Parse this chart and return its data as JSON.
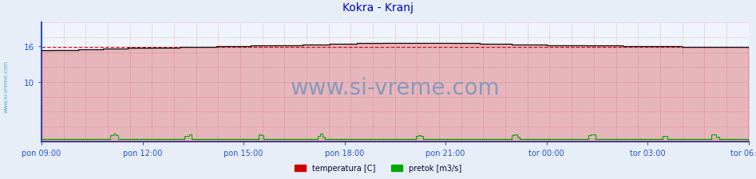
{
  "title": "Kokra - Kranj",
  "title_color": "#0000cc",
  "title_fontsize": 10,
  "fig_bg_color": "#e8eef8",
  "plot_bg_color": "#f0f4fc",
  "xticklabels": [
    "pon 09:00",
    "pon 12:00",
    "pon 15:00",
    "pon 18:00",
    "pon 21:00",
    "tor 00:00",
    "tor 03:00",
    "tor 06:00"
  ],
  "x_tick_count": 8,
  "yticks": [
    10,
    16
  ],
  "ylim": [
    0,
    20
  ],
  "xlim_max": 287,
  "temp_color": "#cc0000",
  "temp_line_color": "#222222",
  "flow_color": "#00aa00",
  "avg_line_color_temp": "#cc0000",
  "avg_line_color_flow": "#00aa00",
  "grid_color": "#dd8888",
  "grid_n_vertical": 32,
  "grid_n_horizontal": 8,
  "watermark": "www.si-vreme.com",
  "watermark_color": "#8899bb",
  "watermark_fontsize": 20,
  "left_label": "www.si-vreme.com",
  "left_label_color": "#44aacc",
  "legend_items": [
    "temperatura [C]",
    "pretok [m3/s]"
  ],
  "legend_colors": [
    "#cc0000",
    "#00aa00"
  ],
  "n_points": 288,
  "axis_color": "#2255cc",
  "axis_linewidth": 1.5
}
